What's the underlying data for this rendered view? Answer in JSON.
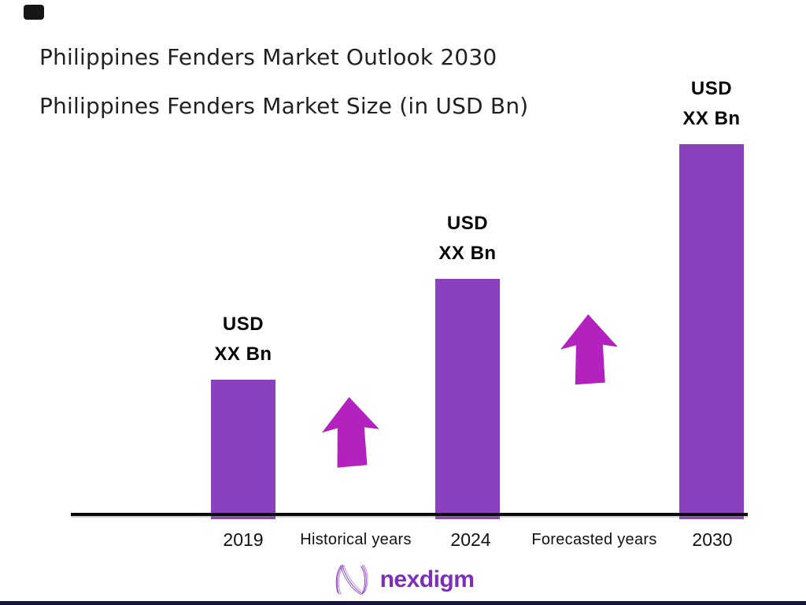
{
  "header": {
    "title": "Philippines Fenders Market Outlook 2030",
    "subtitle": "Philippines Fenders Market Size (in USD Bn)"
  },
  "chart_data": {
    "type": "bar",
    "title": "Philippines Fenders Market Outlook 2030",
    "subtitle": "Philippines Fenders Market Size (in USD Bn)",
    "categories": [
      "2019",
      "2024",
      "2030"
    ],
    "values": [
      "XX",
      "XX",
      "XX"
    ],
    "value_unit": "USD Bn",
    "bars": [
      {
        "year": "2019",
        "label_line1": "USD",
        "label_line2": "XX Bn",
        "height_relative": 0.372
      },
      {
        "year": "2024",
        "label_line1": "USD",
        "label_line2": "XX Bn",
        "height_relative": 0.641
      },
      {
        "year": "2030",
        "label_line1": "USD",
        "label_line2": "XX Bn",
        "height_relative": 1.0
      }
    ],
    "period_annotations": [
      {
        "label": "Historical years",
        "between": [
          "2019",
          "2024"
        ]
      },
      {
        "label": "Forecasted years",
        "between": [
          "2024",
          "2030"
        ]
      }
    ],
    "layout_hints": {
      "grid": false,
      "y_axis_visible": false,
      "x_axis_line": true,
      "legend": "none",
      "growth_arrows_up": 2
    }
  },
  "colors": {
    "bar": "#8A41BE",
    "arrow": "#B322BF",
    "brand_text": "#7C2EB9",
    "title_text": "#212121",
    "axis_line": "#0A0A0A",
    "footer_strip": "#181542",
    "corner_mark": "#161616"
  },
  "footer": {
    "brand": "nexdigm"
  }
}
